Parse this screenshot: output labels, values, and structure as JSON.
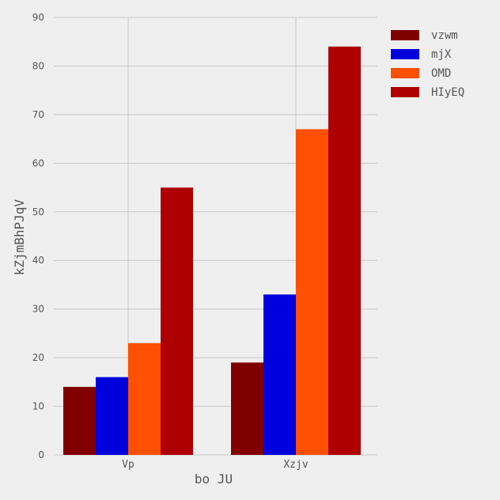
{
  "chart_data": {
    "type": "bar",
    "title": "",
    "xlabel": "bo JU",
    "ylabel": "kZjmBhPJqV",
    "categories": [
      "Vp",
      "Xzjv"
    ],
    "series": [
      {
        "name": "vzwm",
        "values": [
          14,
          19
        ],
        "color": "#800000"
      },
      {
        "name": "mjX",
        "values": [
          16,
          33
        ],
        "color": "#0000dd"
      },
      {
        "name": "OMD",
        "values": [
          23,
          67
        ],
        "color": "#ff4f00"
      },
      {
        "name": "HIyEQ",
        "values": [
          55,
          84
        ],
        "color": "#ae0000"
      }
    ],
    "ylim": [
      0,
      90
    ],
    "yticks": [
      0,
      10,
      20,
      30,
      40,
      50,
      60,
      70,
      80,
      90
    ],
    "grid": true,
    "legend_position": "top-right"
  }
}
